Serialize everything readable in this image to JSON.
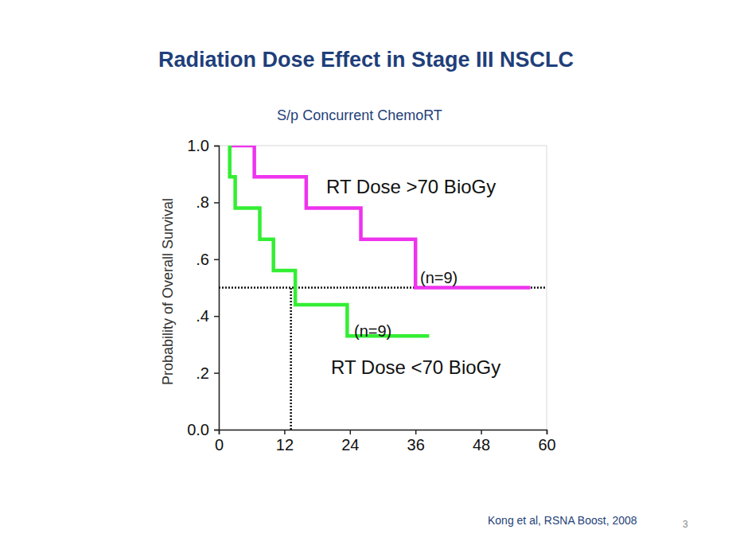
{
  "chart_data": {
    "type": "step",
    "title": "Radiation Dose Effect in Stage III NSCLC",
    "subtitle": "S/p Concurrent ChemoRT",
    "y_label": "Probability of Overall Survival",
    "xlim": [
      0,
      60
    ],
    "xticks": [
      0,
      12,
      24,
      36,
      48,
      60
    ],
    "ylim": [
      0,
      1
    ],
    "yticks": [
      {
        "value": 0,
        "label": "0.0"
      },
      {
        "value": 0.2,
        "label": ".2"
      },
      {
        "value": 0.4,
        "label": ".4"
      },
      {
        "value": 0.6,
        "label": ".6"
      },
      {
        "value": 0.8,
        "label": ".8"
      },
      {
        "value": 1,
        "label": "1.0"
      }
    ],
    "grid": false,
    "series": [
      {
        "name": "RT Dose >70 BioGy",
        "color": "#ee33ee",
        "x": [
          2,
          6.5,
          16,
          26,
          36,
          57
        ],
        "values": [
          1,
          0.89,
          0.78,
          0.67,
          0.5,
          0.5
        ]
      },
      {
        "name": "RT Dose <70 BioGy",
        "color": "#33ee33",
        "x": [
          2,
          2,
          3,
          7.5,
          10,
          14,
          23.5,
          38.5
        ],
        "values": [
          1,
          0.89,
          0.78,
          0.67,
          0.56,
          0.44,
          0.33,
          0.33
        ]
      }
    ],
    "annotations": [
      "(n=9)",
      "(n=9)"
    ],
    "median": {
      "x": 13.2,
      "y": 0.5
    },
    "source": "Kong et al, RSNA Boost, 2008",
    "page_number": "3"
  }
}
